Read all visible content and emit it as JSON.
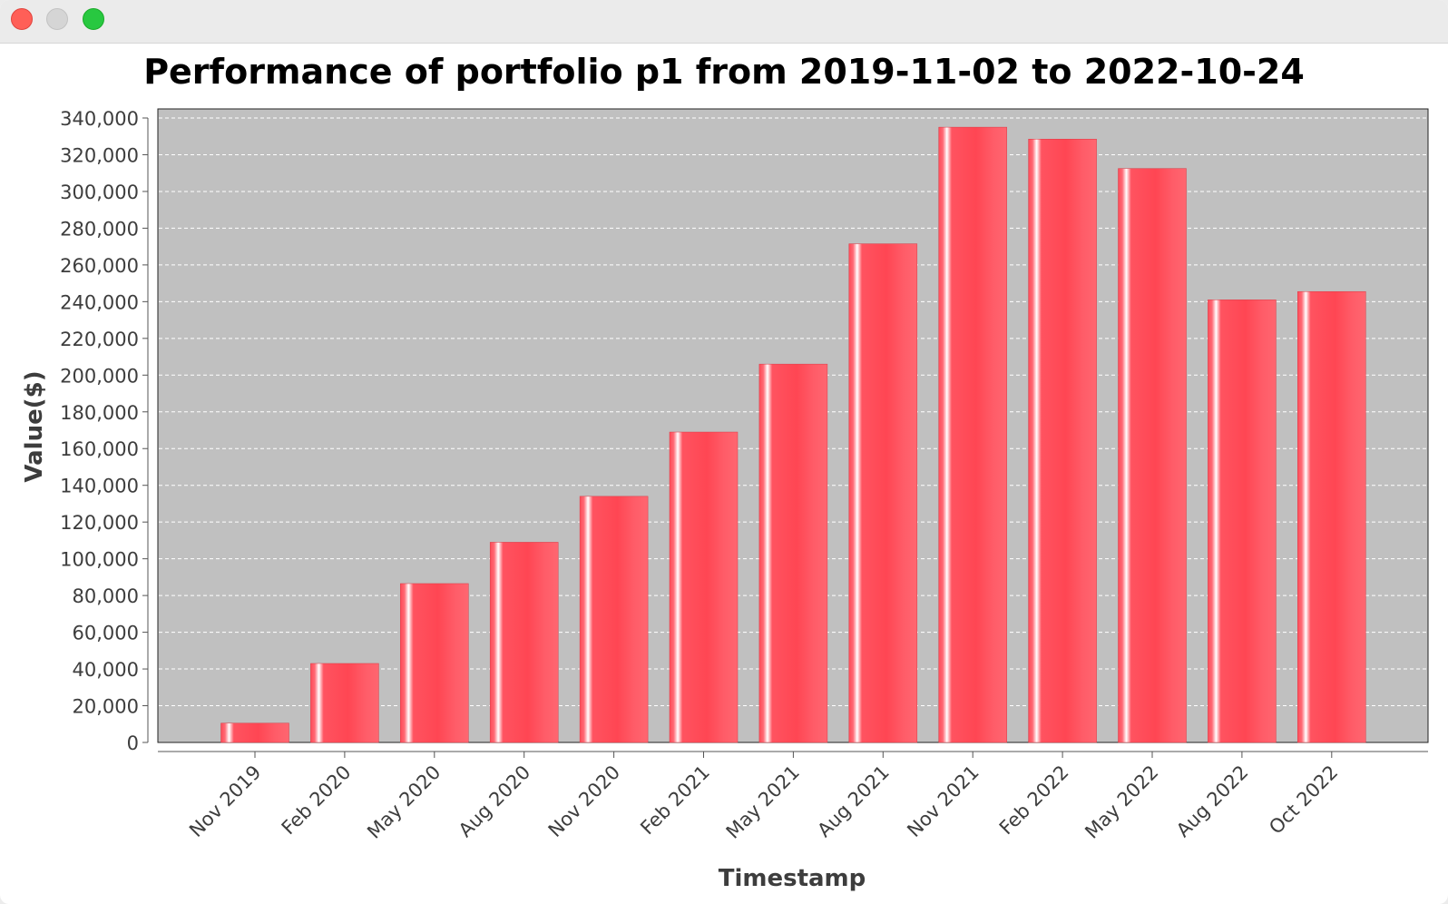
{
  "window": {
    "controls": [
      "close",
      "minimize",
      "maximize"
    ]
  },
  "colors": {
    "plot_background": "#c0c0c0",
    "bar": "#ff4a57",
    "bar_highlight": "#ffffff",
    "gridline": "#ffffff"
  },
  "chart_data": {
    "type": "bar",
    "title": "Performance of portfolio p1 from 2019-11-02 to 2022-10-24",
    "xlabel": "Timestamp",
    "ylabel": "Value($)",
    "categories": [
      "Nov 2019",
      "Feb 2020",
      "May 2020",
      "Aug 2020",
      "Nov 2020",
      "Feb 2021",
      "May 2021",
      "Aug 2021",
      "Nov 2021",
      "Feb 2022",
      "May 2022",
      "Aug 2022",
      "Oct 2022"
    ],
    "values": [
      10500,
      43000,
      86500,
      109000,
      134000,
      169000,
      206000,
      271500,
      335000,
      328500,
      312500,
      241000,
      245500
    ],
    "ylim": [
      0,
      340000
    ],
    "yticks": [
      0,
      20000,
      40000,
      60000,
      80000,
      100000,
      120000,
      140000,
      160000,
      180000,
      200000,
      220000,
      240000,
      260000,
      280000,
      300000,
      320000,
      340000
    ],
    "ytick_labels": [
      "0",
      "20,000",
      "40,000",
      "60,000",
      "80,000",
      "100,000",
      "120,000",
      "140,000",
      "160,000",
      "180,000",
      "200,000",
      "220,000",
      "240,000",
      "260,000",
      "280,000",
      "300,000",
      "320,000",
      "340,000"
    ],
    "grid": true,
    "legend": "none"
  }
}
